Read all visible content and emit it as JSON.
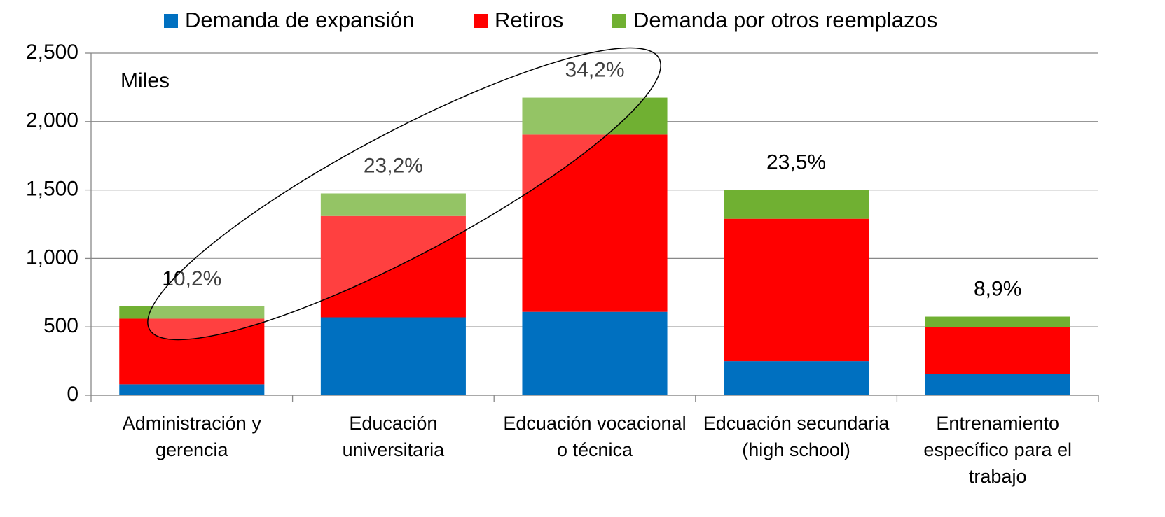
{
  "chart_data": {
    "type": "stacked_bar",
    "categories": [
      [
        "Administración y",
        "gerencia"
      ],
      [
        "Educación",
        "universitaria"
      ],
      [
        "Edcuación vocacional",
        "o técnica"
      ],
      [
        "Edcuación secundaria",
        "(high school)"
      ],
      [
        "Entrenamiento",
        "específico para el",
        "trabajo"
      ]
    ],
    "series": [
      {
        "name": "Demanda de expansión",
        "color": "#0070c0",
        "values": [
          80,
          570,
          610,
          250,
          155
        ]
      },
      {
        "name": "Retiros",
        "color": "#ff0000",
        "values": [
          480,
          740,
          1295,
          1040,
          345
        ]
      },
      {
        "name": "Demanda por otros reemplazos",
        "color": "#70b032",
        "values": [
          90,
          165,
          270,
          210,
          75
        ]
      }
    ],
    "bar_labels": [
      "10,2%",
      "23,2%",
      "34,2%",
      "23,5%",
      "8,9%"
    ],
    "annotation": "Miles",
    "ylim": [
      0,
      2500
    ],
    "yticks": [
      0,
      {
        "value": 500,
        "label": "500"
      },
      {
        "value": 1000,
        "label": "1,000"
      },
      {
        "value": 1500,
        "label": "1,500"
      },
      {
        "value": 2000,
        "label": "2,000"
      },
      {
        "value": 2500,
        "label": "2,500"
      }
    ],
    "grid": true
  }
}
